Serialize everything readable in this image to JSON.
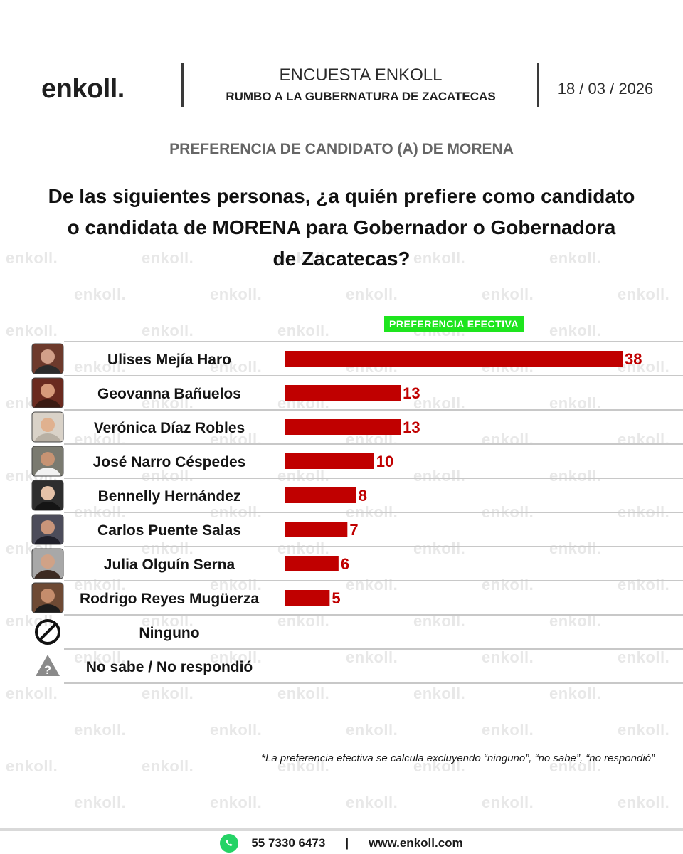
{
  "header": {
    "logo": "enkoll.",
    "title": "ENCUESTA ENKOLL",
    "subtitle": "RUMBO A LA GUBERNATURA DE ZACATECAS",
    "date": "18 / 03 / 2026"
  },
  "section_title": "PREFERENCIA DE CANDIDATO (A) DE MORENA",
  "question": {
    "line1": "De las siguientes personas, ¿a quién prefiere como candidato",
    "line2": "o candidata de MORENA para Gobernador o Gobernadora",
    "line3": "de Zacatecas?"
  },
  "badge": "PREFERENCIA EFECTIVA",
  "watermark": "enkoll.",
  "colors": {
    "bar": "#c00000",
    "badge": "#1ee51e",
    "value_text": "#c00000"
  },
  "chart_data": {
    "type": "bar",
    "orientation": "horizontal",
    "categories": [
      "Ulises Mejía Haro",
      "Geovanna Bañuelos",
      "Verónica Díaz Robles",
      "José Narro Céspedes",
      "Bennelly Hernández",
      "Carlos Puente Salas",
      "Julia Olguín Serna",
      "Rodrigo Reyes Mugüerza",
      "Ninguno",
      "No sabe / No respondió"
    ],
    "values": [
      38,
      13,
      13,
      10,
      8,
      7,
      6,
      5,
      null,
      null
    ],
    "icons": [
      "avatar",
      "avatar",
      "avatar",
      "avatar",
      "avatar",
      "avatar",
      "avatar",
      "avatar",
      "prohibited-icon",
      "question-warning-icon"
    ],
    "xlim": [
      0,
      38
    ],
    "grid": false,
    "legend": "none"
  },
  "footnote": "*La preferencia efectiva se calcula excluyendo “ninguno”, “no sabe”, “no respondió”",
  "footer": {
    "phone": "55 7330 6473",
    "separator": "|",
    "website": "www.enkoll.com"
  }
}
